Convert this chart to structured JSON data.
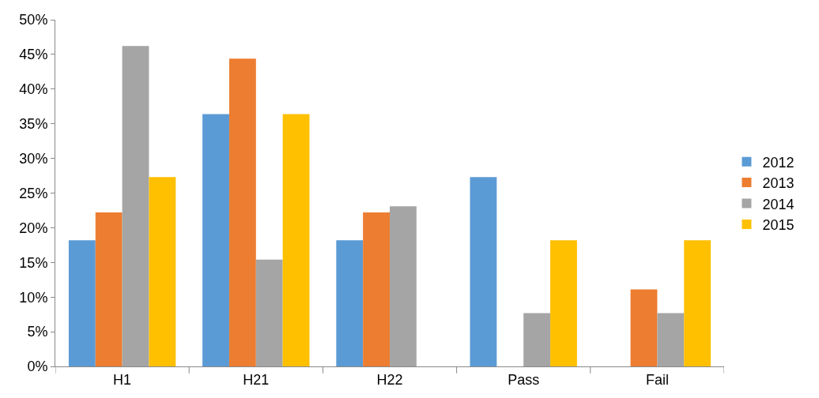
{
  "chart_data": {
    "type": "bar",
    "categories": [
      "H1",
      "H21",
      "H22",
      "Pass",
      "Fail"
    ],
    "series": [
      {
        "name": "2012",
        "color": "#5b9bd5",
        "values": [
          18.2,
          36.4,
          18.2,
          27.3,
          0
        ]
      },
      {
        "name": "2013",
        "color": "#ed7d31",
        "values": [
          22.2,
          44.4,
          22.2,
          0,
          11.1
        ]
      },
      {
        "name": "2014",
        "color": "#a5a5a5",
        "values": [
          46.2,
          15.4,
          23.1,
          7.7,
          7.7
        ]
      },
      {
        "name": "2015",
        "color": "#ffc000",
        "values": [
          27.3,
          36.4,
          0,
          18.2,
          18.2
        ]
      }
    ],
    "ylim": [
      0,
      50
    ],
    "yticks": [
      {
        "value": 0,
        "label": "0%"
      },
      {
        "value": 5,
        "label": "5%"
      },
      {
        "value": 10,
        "label": "10%"
      },
      {
        "value": 15,
        "label": "15%"
      },
      {
        "value": 20,
        "label": "20%"
      },
      {
        "value": 25,
        "label": "25%"
      },
      {
        "value": 30,
        "label": "30%"
      },
      {
        "value": 35,
        "label": "35%"
      },
      {
        "value": 40,
        "label": "40%"
      },
      {
        "value": 45,
        "label": "45%"
      },
      {
        "value": 50,
        "label": "50%"
      }
    ],
    "legend": "right"
  }
}
